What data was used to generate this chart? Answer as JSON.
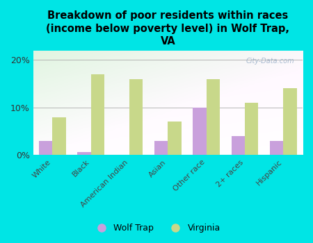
{
  "categories": [
    "White",
    "Black",
    "American Indian",
    "Asian",
    "Other race",
    "2+ races",
    "Hispanic"
  ],
  "wolf_trap": [
    3.0,
    0.7,
    0.0,
    3.0,
    10.0,
    4.0,
    3.0
  ],
  "virginia": [
    8.0,
    17.0,
    16.0,
    7.0,
    16.0,
    11.0,
    14.0
  ],
  "wolf_trap_color": "#c9a0dc",
  "virginia_color": "#c8d88a",
  "background_color": "#00e5e5",
  "title": "Breakdown of poor residents within races\n(income below poverty level) in Wolf Trap,\nVA",
  "title_fontsize": 10.5,
  "ylim": [
    0,
    22
  ],
  "yticks": [
    0,
    10,
    20
  ],
  "ytick_labels": [
    "0%",
    "10%",
    "20%"
  ],
  "watermark": "City-Data.com",
  "legend_wolf_trap": "Wolf Trap",
  "legend_virginia": "Virginia",
  "bar_width": 0.35
}
